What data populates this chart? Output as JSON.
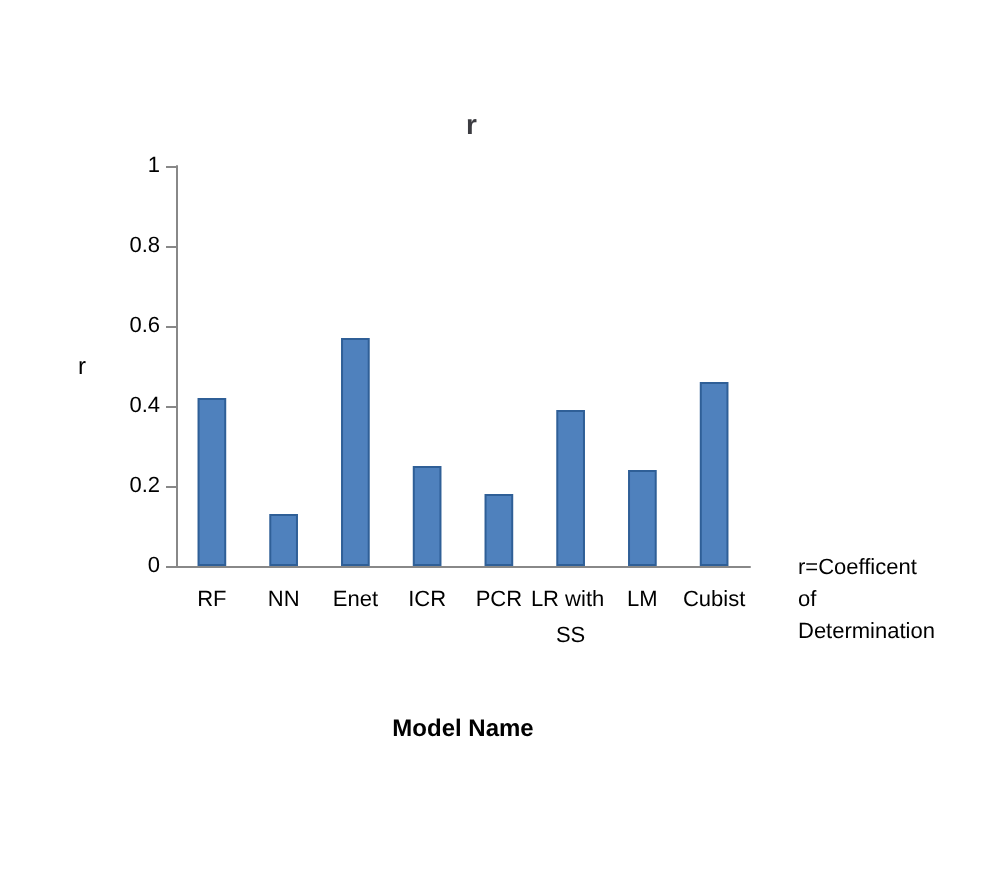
{
  "chart_data": {
    "type": "bar",
    "title": "r",
    "xlabel": "Model Name",
    "ylabel": "r",
    "categories": [
      "RF",
      "NN",
      "Enet",
      "ICR",
      "PCR",
      "LR with SS",
      "LM",
      "Cubist"
    ],
    "values": [
      0.42,
      0.13,
      0.57,
      0.25,
      0.18,
      0.39,
      0.24,
      0.46
    ],
    "color": "#4f81bd",
    "ylim": [
      0,
      1
    ],
    "yticks": [
      0,
      0.2,
      0.4,
      0.6,
      0.8,
      1
    ],
    "grid": false,
    "annotations": [
      "r=Coefficent of Determination"
    ]
  }
}
